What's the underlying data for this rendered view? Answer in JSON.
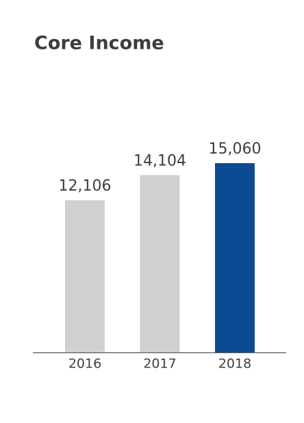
{
  "chart_data": {
    "type": "bar",
    "title": "Core Income",
    "categories": [
      "2016",
      "2017",
      "2018"
    ],
    "values": [
      12106,
      14104,
      15060
    ],
    "value_labels": [
      "12,106",
      "14,104",
      "15,060"
    ],
    "colors": [
      "#d0d0d0",
      "#d0d0d0",
      "#0c4a93"
    ]
  }
}
